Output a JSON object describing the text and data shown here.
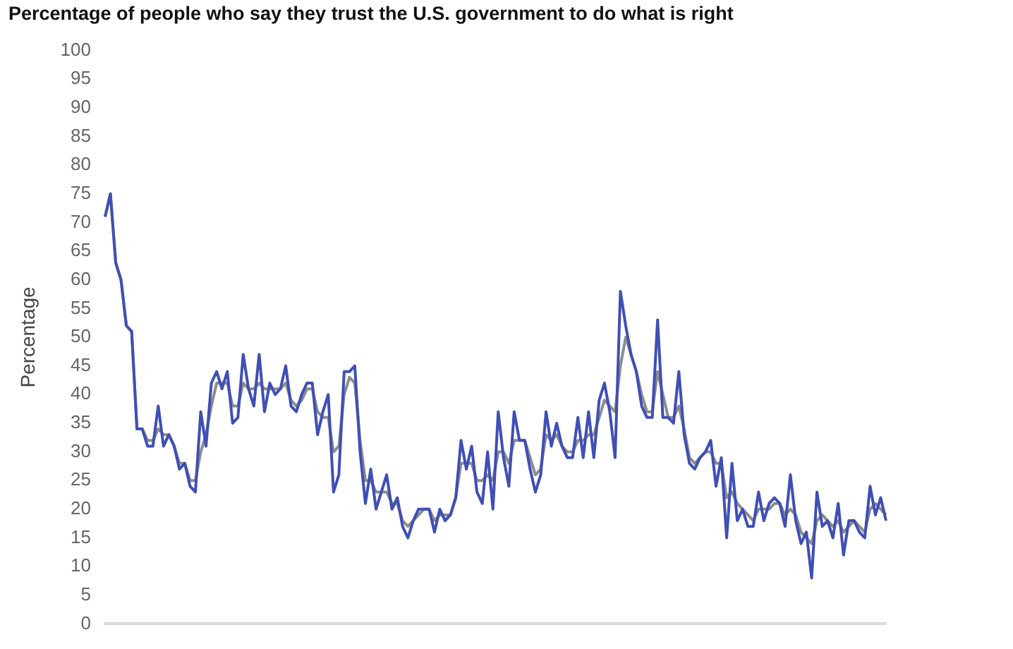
{
  "chart_data": {
    "type": "line",
    "title": "Percentage of people who say they trust the U.S. government to do what is right",
    "ylabel": "Percentage",
    "categories": [
      null,
      null,
      null,
      null,
      null,
      null,
      null,
      null,
      null,
      null,
      null,
      null,
      null,
      null,
      null,
      null,
      null,
      null,
      null,
      null,
      null,
      null,
      null,
      null,
      null,
      null,
      null,
      null,
      null,
      null,
      null,
      null,
      null,
      null,
      null,
      null,
      null,
      null,
      null,
      null,
      null,
      null,
      null,
      null,
      null,
      null,
      null,
      null,
      null,
      null,
      null,
      null,
      null,
      null,
      null,
      null,
      null,
      null,
      null,
      null,
      null,
      null,
      null,
      null,
      null,
      null,
      null,
      null,
      null,
      null,
      null,
      null,
      null,
      null,
      null,
      null,
      null,
      null,
      null,
      null,
      null,
      null,
      null,
      null,
      null,
      null,
      null,
      null,
      null,
      null,
      null,
      null,
      null,
      null,
      null,
      null,
      null,
      null,
      null,
      null,
      null,
      null,
      null,
      null,
      null,
      null,
      null,
      null,
      null,
      null,
      null,
      null,
      null,
      null,
      null,
      null,
      null,
      null,
      null,
      null,
      null,
      null,
      null,
      null,
      null,
      null,
      null,
      null,
      null,
      null,
      null,
      null,
      null,
      null,
      null,
      null,
      null,
      null,
      null,
      null,
      null,
      null,
      null,
      null,
      null,
      null,
      null,
      null
    ],
    "series": [
      {
        "color": "#3f4fb5",
        "values": [
          71,
          75,
          63,
          60,
          52,
          51,
          34,
          34,
          31,
          31,
          38,
          31,
          33,
          31,
          27,
          28,
          24,
          23,
          37,
          31,
          42,
          44,
          41,
          44,
          35,
          36,
          47,
          41,
          38,
          47,
          37,
          42,
          40,
          41,
          45,
          38,
          37,
          40,
          42,
          42,
          33,
          37,
          40,
          23,
          26,
          44,
          44,
          45,
          30,
          21,
          27,
          20,
          23,
          26,
          20,
          22,
          17,
          15,
          18,
          20,
          20,
          20,
          16,
          20,
          18,
          19,
          22,
          32,
          27,
          31,
          23,
          21,
          30,
          20,
          37,
          29,
          24,
          37,
          32,
          32,
          27,
          23,
          26,
          37,
          31,
          35,
          31,
          29,
          29,
          36,
          29,
          37,
          29,
          39,
          42,
          37,
          29,
          58,
          52,
          47,
          44,
          38,
          36,
          36,
          53,
          36,
          36,
          35,
          44,
          33,
          28,
          27,
          29,
          30,
          32,
          24,
          29,
          15,
          28,
          18,
          20,
          17,
          17,
          23,
          18,
          21,
          22,
          21,
          17,
          26,
          18,
          14,
          16,
          8,
          23,
          17,
          18,
          15,
          21,
          12,
          18,
          18,
          16,
          15,
          24,
          19,
          22,
          18
        ]
      },
      {
        "color": "#8c8c8c",
        "values": [
          71,
          75,
          63,
          60,
          52,
          51,
          34,
          34,
          32,
          32,
          34,
          33,
          33,
          31,
          28,
          28,
          25,
          25,
          30,
          33,
          38,
          42,
          42,
          42,
          38,
          38,
          42,
          41,
          41,
          42,
          41,
          41,
          41,
          41,
          42,
          39,
          38,
          39,
          41,
          41,
          37,
          36,
          36,
          30,
          31,
          40,
          43,
          42,
          32,
          25,
          25,
          23,
          23,
          23,
          21,
          21,
          18,
          17,
          18,
          19,
          20,
          20,
          18,
          19,
          19,
          19,
          22,
          28,
          28,
          28,
          25,
          25,
          26,
          25,
          30,
          30,
          28,
          32,
          32,
          32,
          29,
          26,
          27,
          33,
          32,
          33,
          31,
          30,
          30,
          32,
          32,
          33,
          33,
          36,
          39,
          38,
          37,
          45,
          50,
          47,
          44,
          40,
          37,
          37,
          44,
          40,
          36,
          36,
          38,
          34,
          29,
          28,
          29,
          30,
          30,
          28,
          28,
          22,
          23,
          21,
          20,
          19,
          18,
          20,
          20,
          20,
          21,
          21,
          19,
          20,
          19,
          16,
          15,
          14,
          18,
          19,
          18,
          17,
          18,
          16,
          17,
          18,
          17,
          16,
          20,
          21,
          20,
          19
        ]
      }
    ],
    "ylim": [
      0,
      100
    ],
    "yticks": [
      0,
      5,
      10,
      15,
      20,
      25,
      30,
      35,
      40,
      45,
      50,
      55,
      60,
      65,
      70,
      75,
      80,
      85,
      90,
      95,
      100
    ],
    "tick_labels": "y",
    "grid": false,
    "legend": false,
    "marker": "none",
    "line_style": "solid"
  }
}
